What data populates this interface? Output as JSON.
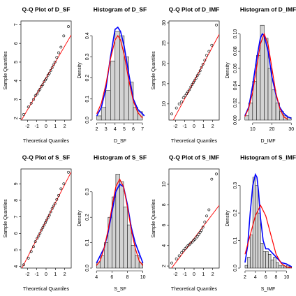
{
  "chart_data": [
    {
      "type": "qq",
      "title": "Q-Q Plot of D_SF",
      "xlabel": "Theoretical Quantiles",
      "ylabel": "Sample Quantiles",
      "xlim": [
        -2.7,
        2.7
      ],
      "ylim": [
        1.9,
        7.2
      ],
      "xticks": [
        -2,
        -1,
        0,
        1,
        2
      ],
      "yticks": [
        2,
        3,
        4,
        5,
        6,
        7
      ],
      "x": [
        -2.4,
        -1.9,
        -1.6,
        -1.35,
        -1.15,
        -0.95,
        -0.8,
        -0.65,
        -0.5,
        -0.35,
        -0.2,
        -0.07,
        0.07,
        0.2,
        0.35,
        0.5,
        0.65,
        0.8,
        0.95,
        1.15,
        1.35,
        1.6,
        1.9,
        2.4
      ],
      "values": [
        2.2,
        2.6,
        2.8,
        3.0,
        3.2,
        3.3,
        3.45,
        3.55,
        3.7,
        3.8,
        3.95,
        4.05,
        4.15,
        4.3,
        4.4,
        4.55,
        4.7,
        4.85,
        5.0,
        5.25,
        5.5,
        5.8,
        6.4,
        6.9
      ],
      "line": {
        "color": "#ff0000",
        "x": [
          -2.7,
          2.7
        ],
        "values": [
          1.85,
          6.45
        ]
      }
    },
    {
      "type": "histogram",
      "title": "Histogram of D_SF",
      "xlabel": "D_SF",
      "ylabel": "Density",
      "xlim": [
        1.8,
        7.3
      ],
      "ylim": [
        0,
        0.47
      ],
      "xticks": [
        2,
        3,
        4,
        5,
        6,
        7
      ],
      "yticks": [
        {
          "value": 0,
          "label": "0.0"
        },
        {
          "value": 0.1,
          "label": "0.1"
        },
        {
          "value": 0.2,
          "label": "0.2"
        },
        {
          "value": 0.3,
          "label": "0.3"
        },
        {
          "value": 0.4,
          "label": "0.4"
        }
      ],
      "color": "#d3d3d3",
      "bins": [
        2,
        2.5,
        3,
        3.5,
        4,
        4.5,
        5,
        5.5,
        6,
        6.5,
        7
      ],
      "counts": [
        0.02,
        0.06,
        0.14,
        0.28,
        0.42,
        0.4,
        0.3,
        0.18,
        0.06,
        0.04
      ],
      "curves": [
        {
          "color": "#0000ff",
          "x": [
            2,
            2.5,
            3,
            3.5,
            4,
            4.3,
            4.6,
            5,
            5.5,
            6,
            6.5,
            7,
            7.2
          ],
          "values": [
            0.02,
            0.06,
            0.15,
            0.3,
            0.43,
            0.44,
            0.42,
            0.35,
            0.22,
            0.1,
            0.05,
            0.03,
            0.02
          ]
        },
        {
          "color": "#ff0000",
          "x": [
            2,
            2.5,
            3,
            3.5,
            4,
            4.3,
            4.6,
            5,
            5.5,
            6,
            6.5,
            7
          ],
          "values": [
            0.03,
            0.08,
            0.17,
            0.29,
            0.38,
            0.4,
            0.38,
            0.31,
            0.19,
            0.09,
            0.035,
            0.01
          ]
        }
      ]
    },
    {
      "type": "qq",
      "title": "Q-Q Plot of D_IMF",
      "xlabel": "Theoretical Quantiles",
      "ylabel": "Sample Quantiles",
      "xlim": [
        -2.7,
        2.7
      ],
      "ylim": [
        6,
        30.5
      ],
      "xticks": [
        -2,
        -1,
        0,
        1,
        2
      ],
      "yticks": [
        10,
        15,
        20,
        25,
        30
      ],
      "x": [
        -2.4,
        -1.9,
        -1.6,
        -1.35,
        -1.15,
        -0.95,
        -0.8,
        -0.65,
        -0.5,
        -0.35,
        -0.2,
        -0.07,
        0.07,
        0.2,
        0.35,
        0.5,
        0.65,
        0.8,
        0.95,
        1.15,
        1.35,
        1.6,
        1.9,
        2.4
      ],
      "values": [
        7.5,
        9,
        10,
        10.5,
        11.5,
        12,
        12.5,
        13,
        13.5,
        14.2,
        14.8,
        15.3,
        15.8,
        16.3,
        17,
        17.5,
        18.2,
        19,
        19.8,
        20.8,
        22,
        23,
        24.5,
        29.5
      ],
      "line": {
        "color": "#ff0000",
        "x": [
          -2.7,
          2.7
        ],
        "values": [
          4.0,
          27.2
        ]
      }
    },
    {
      "type": "histogram",
      "title": "Histogram of D_IMF",
      "xlabel": "D_IMF",
      "ylabel": "Density",
      "xlim": [
        5,
        31
      ],
      "ylim": [
        0,
        0.115
      ],
      "xticks": [
        10,
        20,
        30
      ],
      "yticks": [
        {
          "value": 0,
          "label": "0.00"
        },
        {
          "value": 0.02,
          "label": "0.02"
        },
        {
          "value": 0.04,
          "label": "0.04"
        },
        {
          "value": 0.06,
          "label": "0.06"
        },
        {
          "value": 0.08,
          "label": "0.08"
        },
        {
          "value": 0.1,
          "label": "0.10"
        }
      ],
      "color": "#d3d3d3",
      "bins": [
        6,
        8,
        10,
        12,
        14,
        16,
        18,
        20,
        22,
        24,
        26,
        28,
        30
      ],
      "counts": [
        0.005,
        0.02,
        0.045,
        0.075,
        0.11,
        0.095,
        0.06,
        0.035,
        0.02,
        0.01,
        0.005,
        0.003
      ],
      "curves": [
        {
          "color": "#0000ff",
          "x": [
            6,
            8,
            10,
            12,
            14,
            15,
            16,
            18,
            20,
            22,
            24,
            26,
            28,
            30
          ],
          "values": [
            0.005,
            0.015,
            0.04,
            0.07,
            0.095,
            0.1,
            0.098,
            0.08,
            0.05,
            0.03,
            0.015,
            0.008,
            0.004,
            0.002
          ]
        },
        {
          "color": "#ff0000",
          "x": [
            6,
            8,
            10,
            12,
            14,
            16,
            18,
            20,
            22,
            24,
            26,
            28
          ],
          "values": [
            0.004,
            0.014,
            0.032,
            0.06,
            0.088,
            0.1,
            0.088,
            0.06,
            0.032,
            0.014,
            0.004,
            0.001
          ]
        }
      ]
    },
    {
      "type": "qq",
      "title": "Q-Q Plot of S_SF",
      "xlabel": "Theoretical Quantiles",
      "ylabel": "Sample Quantiles",
      "xlim": [
        -2.7,
        2.7
      ],
      "ylim": [
        3.9,
        9.9
      ],
      "xticks": [
        -2,
        -1,
        0,
        1,
        2
      ],
      "yticks": [
        4,
        5,
        6,
        7,
        8,
        9
      ],
      "x": [
        -2.4,
        -1.9,
        -1.6,
        -1.35,
        -1.15,
        -0.95,
        -0.8,
        -0.65,
        -0.5,
        -0.35,
        -0.2,
        -0.07,
        0.07,
        0.2,
        0.35,
        0.5,
        0.65,
        0.8,
        0.95,
        1.15,
        1.35,
        1.6,
        1.9,
        2.4
      ],
      "values": [
        4.1,
        4.5,
        4.9,
        5.2,
        5.5,
        5.7,
        5.85,
        6.0,
        6.2,
        6.35,
        6.5,
        6.65,
        6.8,
        6.95,
        7.1,
        7.3,
        7.5,
        7.65,
        7.8,
        8.05,
        8.3,
        8.7,
        9.0,
        9.7
      ],
      "line": {
        "color": "#ff0000",
        "x": [
          -2.7,
          2.7
        ],
        "values": [
          3.78,
          9.72
        ]
      }
    },
    {
      "type": "histogram",
      "title": "Histogram of S_SF",
      "xlabel": "S_SF",
      "ylabel": "Density",
      "xlim": [
        3.8,
        10.3
      ],
      "ylim": [
        0,
        0.39
      ],
      "xticks": [
        4,
        6,
        8,
        10
      ],
      "yticks": [
        {
          "value": 0,
          "label": "0.0"
        },
        {
          "value": 0.1,
          "label": "0.1"
        },
        {
          "value": 0.2,
          "label": "0.2"
        },
        {
          "value": 0.3,
          "label": "0.3"
        }
      ],
      "color": "#d3d3d3",
      "bins": [
        4,
        4.5,
        5,
        5.5,
        6,
        6.5,
        7,
        7.5,
        8,
        8.5,
        9,
        9.5,
        10
      ],
      "counts": [
        0.02,
        0.05,
        0.1,
        0.2,
        0.28,
        0.37,
        0.34,
        0.24,
        0.17,
        0.09,
        0.05,
        0.02
      ],
      "curves": [
        {
          "color": "#0000ff",
          "x": [
            4,
            5,
            5.5,
            6,
            6.5,
            7,
            7.5,
            8,
            8.5,
            9,
            10
          ],
          "values": [
            0.02,
            0.08,
            0.14,
            0.22,
            0.3,
            0.33,
            0.32,
            0.25,
            0.16,
            0.1,
            0.02
          ]
        },
        {
          "color": "#ff0000",
          "x": [
            4,
            4.5,
            5,
            5.5,
            6,
            6.5,
            7,
            7.5,
            8,
            8.5,
            9,
            9.5,
            10
          ],
          "values": [
            0.01,
            0.03,
            0.08,
            0.15,
            0.24,
            0.32,
            0.35,
            0.32,
            0.24,
            0.15,
            0.08,
            0.03,
            0.01
          ]
        }
      ]
    },
    {
      "type": "qq",
      "title": "Q-Q Plot of S_IMF",
      "xlabel": "Theoretical Quantiles",
      "ylabel": "Sample Quantiles",
      "xlim": [
        -2.7,
        2.7
      ],
      "ylim": [
        1.8,
        11.5
      ],
      "xticks": [
        -2,
        -1,
        0,
        1,
        2
      ],
      "yticks": [
        2,
        4,
        6,
        8,
        10
      ],
      "x": [
        -2.4,
        -1.9,
        -1.6,
        -1.35,
        -1.15,
        -0.95,
        -0.8,
        -0.65,
        -0.5,
        -0.35,
        -0.2,
        -0.07,
        0.07,
        0.2,
        0.35,
        0.5,
        0.65,
        0.8,
        0.95,
        1.15,
        1.35,
        1.6,
        1.9,
        2.4
      ],
      "values": [
        2.3,
        2.7,
        3.0,
        3.3,
        3.5,
        3.7,
        3.85,
        4.0,
        4.1,
        4.25,
        4.35,
        4.5,
        4.6,
        4.75,
        4.9,
        5.1,
        5.3,
        5.5,
        5.8,
        6.3,
        6.9,
        7.5,
        10.5,
        11.0
      ],
      "line": {
        "color": "#ff0000",
        "x": [
          -2.7,
          2.7
        ],
        "values": [
          1.46,
          7.94
        ]
      }
    },
    {
      "type": "histogram",
      "title": "Histogram of S_IMF",
      "xlabel": "S_IMF",
      "ylabel": "Density",
      "xlim": [
        1.6,
        11.3
      ],
      "ylim": [
        0,
        0.36
      ],
      "xticks": [
        2,
        4,
        6,
        8,
        10
      ],
      "yticks": [
        {
          "value": 0,
          "label": "0.0"
        },
        {
          "value": 0.1,
          "label": "0.1"
        },
        {
          "value": 0.2,
          "label": "0.2"
        },
        {
          "value": 0.3,
          "label": "0.3"
        }
      ],
      "color": "#d3d3d3",
      "bins": [
        2,
        2.5,
        3,
        3.5,
        4,
        4.5,
        5,
        5.5,
        6,
        6.5,
        7,
        7.5,
        8,
        8.5,
        9,
        9.5,
        10,
        10.5,
        11
      ],
      "counts": [
        0.01,
        0.04,
        0.12,
        0.33,
        0.3,
        0.2,
        0.09,
        0.06,
        0.06,
        0.05,
        0.03,
        0.04,
        0.02,
        0.01,
        0.01,
        0.005,
        0.01,
        0.005
      ],
      "curves": [
        {
          "color": "#0000ff",
          "x": [
            2,
            2.5,
            3,
            3.5,
            4,
            4.3,
            4.6,
            5,
            5.5,
            6,
            6.5,
            7,
            8,
            9,
            10,
            11
          ],
          "values": [
            0.02,
            0.08,
            0.2,
            0.3,
            0.34,
            0.33,
            0.28,
            0.18,
            0.1,
            0.07,
            0.07,
            0.06,
            0.04,
            0.02,
            0.015,
            0.005
          ]
        },
        {
          "color": "#ff0000",
          "x": [
            2,
            3,
            4,
            5,
            6,
            7,
            8,
            9,
            10,
            11
          ],
          "values": [
            0.05,
            0.12,
            0.19,
            0.228,
            0.19,
            0.12,
            0.05,
            0.017,
            0.004,
            0.001
          ]
        }
      ]
    }
  ]
}
